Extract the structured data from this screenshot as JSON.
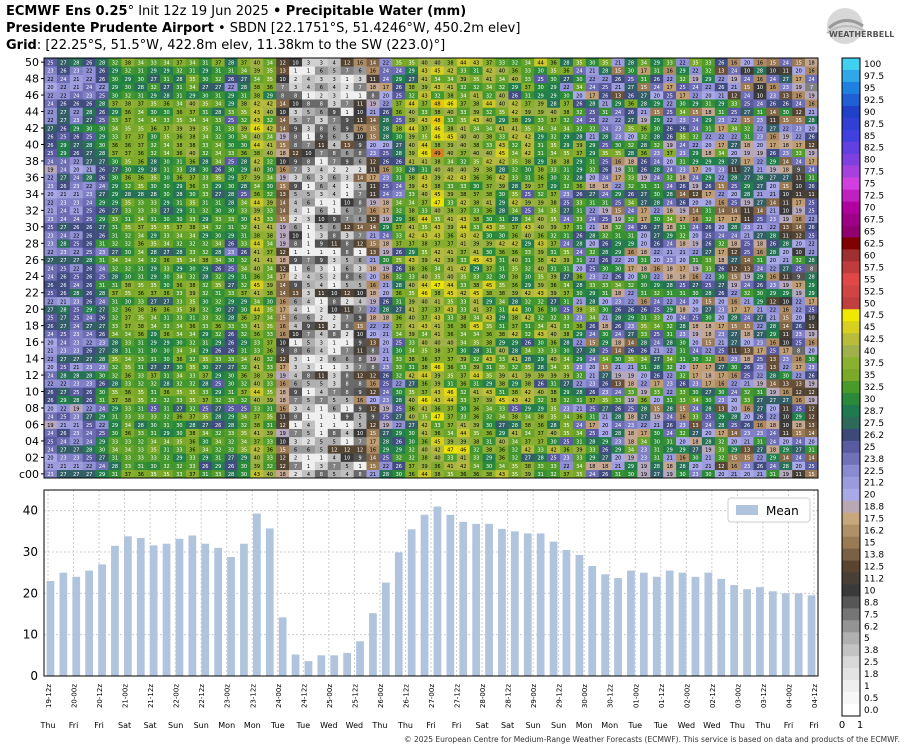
{
  "header": {
    "line1_bold_a": "ECMWF Ens 0.25",
    "line1_deg": "°",
    "line1_init": " Init 12z 19 Jun 2025 ",
    "line1_bullet": "•",
    "line1_bold_b": " Precipitable Water (mm)",
    "line2_bold": "Presidente Prudente Airport",
    "line2_rest": " • SBDN [22.1751°S, 51.4246°W, 450.2m elev]",
    "line3_bold": "Grid",
    "line3_rest": ": [22.25°S, 51.5°W, 422.8m elev, 11.38km to the SW (223.0)°]"
  },
  "footer": "© 2025 European Centre for Medium-Range Weather Forecasts (ECMWF). This service is based on data and products of the ECMWF.",
  "colors": {
    "bar": "#b0c4de",
    "grid": "#cccccc"
  },
  "chart_data": [
    {
      "type": "heatmap",
      "title": "",
      "ylabel": "",
      "y_tick_labels": [
        "c00",
        "02",
        "04",
        "06",
        "08",
        "10",
        "12",
        "14",
        "16",
        "18",
        "20",
        "22",
        "24",
        "26",
        "28",
        "30",
        "32",
        "34",
        "36",
        "38",
        "40",
        "42",
        "44",
        "46",
        "48",
        "50"
      ],
      "members": 51,
      "columns": 60,
      "note_cells": "each cell prints the member's precipitable water value in mm",
      "colorbar": {
        "tick_labels": [
          "100",
          "97.5",
          "95",
          "92.5",
          "90",
          "87.5",
          "85",
          "82.5",
          "80",
          "77.5",
          "75",
          "72.5",
          "70",
          "67.5",
          "65",
          "62.5",
          "60",
          "57.5",
          "55",
          "52.5",
          "50",
          "47.5",
          "45",
          "42.5",
          "40",
          "37.5",
          "35",
          "32.5",
          "30",
          "28.7",
          "27.5",
          "26.2",
          "25",
          "23.8",
          "22.5",
          "21.2",
          "20",
          "18.8",
          "17.5",
          "16.2",
          "15",
          "13.8",
          "12.5",
          "11.2",
          "10",
          "8.8",
          "7.5",
          "6.2",
          "5",
          "3.8",
          "2.5",
          "1.8",
          "1",
          "0.5",
          "0.0"
        ],
        "x_ticks": [
          "0",
          "1"
        ],
        "stops": [
          [
            0,
            "#ffffff"
          ],
          [
            5,
            "#b0b0b0"
          ],
          [
            10,
            "#3a3a3a"
          ],
          [
            12.5,
            "#5a4630"
          ],
          [
            15,
            "#9a7a55"
          ],
          [
            17.5,
            "#c9a77c"
          ],
          [
            20,
            "#a9a9e8"
          ],
          [
            22.5,
            "#8a8ad0"
          ],
          [
            25,
            "#5a5aa0"
          ],
          [
            26.2,
            "#3c4a7a"
          ],
          [
            27.5,
            "#2d6a5a"
          ],
          [
            28.7,
            "#1f7a50"
          ],
          [
            30,
            "#2a8a3a"
          ],
          [
            32.5,
            "#4a9a2a"
          ],
          [
            35,
            "#7aa828"
          ],
          [
            37.5,
            "#8ab030"
          ],
          [
            40,
            "#a0b04a"
          ],
          [
            42.5,
            "#b8bc3a"
          ],
          [
            45,
            "#d8d020"
          ],
          [
            47.5,
            "#f0e800"
          ],
          [
            50,
            "#c04040"
          ],
          [
            55,
            "#e04848"
          ],
          [
            60,
            "#a03030"
          ],
          [
            62.5,
            "#800000"
          ],
          [
            65,
            "#900070"
          ],
          [
            70,
            "#b000a0"
          ],
          [
            75,
            "#d040e0"
          ],
          [
            80,
            "#8040e0"
          ],
          [
            85,
            "#4040e0"
          ],
          [
            90,
            "#2040c8"
          ],
          [
            95,
            "#2080e0"
          ],
          [
            100,
            "#40d0f0"
          ]
        ]
      },
      "column_means": [
        23,
        25,
        24,
        25.5,
        27,
        31.5,
        33.8,
        33.4,
        31.6,
        32,
        33.2,
        34,
        32,
        31,
        28.8,
        32,
        39.3,
        35.7,
        14.2,
        5.2,
        3.6,
        5,
        5,
        5.6,
        8.4,
        15.2,
        22.6,
        29.9,
        35.5,
        39,
        41,
        39,
        37.3,
        36.8,
        36.8,
        35.6,
        35,
        34.5,
        34.5,
        32.5,
        30.5,
        29.3,
        26.6,
        24.6,
        23.7,
        25.5,
        25,
        24,
        25.5,
        25,
        24,
        25,
        23.5,
        22,
        21,
        21.5,
        20.5,
        20,
        20,
        19.5
      ]
    },
    {
      "type": "bar",
      "title": "",
      "xlabel": "",
      "ylabel": "",
      "ylim": [
        0,
        45
      ],
      "yticks": [
        0,
        10,
        20,
        30,
        40
      ],
      "grid": true,
      "legend": {
        "placement": "top-right",
        "entries": [
          "Mean"
        ]
      },
      "series": [
        {
          "name": "Mean",
          "values": [
            23,
            25,
            24,
            25.5,
            27,
            31.5,
            33.8,
            33.4,
            31.6,
            32,
            33.2,
            34,
            32,
            31,
            28.8,
            32,
            39.3,
            35.7,
            14.2,
            5.2,
            3.6,
            5,
            5,
            5.6,
            8.4,
            15.2,
            22.6,
            29.9,
            35.5,
            39,
            41,
            39,
            37.3,
            36.8,
            36.8,
            35.6,
            35,
            34.5,
            34.5,
            32.5,
            30.5,
            29.3,
            26.6,
            24.6,
            23.7,
            25.5,
            25,
            24,
            25.5,
            25,
            24,
            25,
            23.5,
            22,
            21,
            21.5,
            20.5,
            20,
            20,
            19.5
          ]
        }
      ],
      "x_tick_labels": [
        "19-12z",
        "20-00z",
        "20-12z",
        "21-00z",
        "21-12z",
        "22-00z",
        "22-12z",
        "23-00z",
        "23-12z",
        "24-00z",
        "24-12z",
        "25-00z",
        "25-12z",
        "26-00z",
        "26-12z",
        "27-00z",
        "27-12z",
        "28-00z",
        "28-12z",
        "29-00z",
        "29-12z",
        "30-00z",
        "30-12z",
        "01-00z",
        "01-12z",
        "02-00z",
        "02-12z",
        "03-00z",
        "03-12z",
        "04-00z",
        "04-12z"
      ],
      "day_labels": [
        "Thu",
        "Fri",
        "Fri",
        "Sat",
        "Sat",
        "Sun",
        "Sun",
        "Mon",
        "Mon",
        "Tue",
        "Tue",
        "Wed",
        "Wed",
        "Thu",
        "Thu",
        "Fri",
        "Fri",
        "Sat",
        "Sat",
        "Sun",
        "Sun",
        "Mon",
        "Mon",
        "Tue",
        "Tue",
        "Wed",
        "Wed",
        "Thu",
        "Thu",
        "Fri",
        "Fri"
      ]
    }
  ]
}
